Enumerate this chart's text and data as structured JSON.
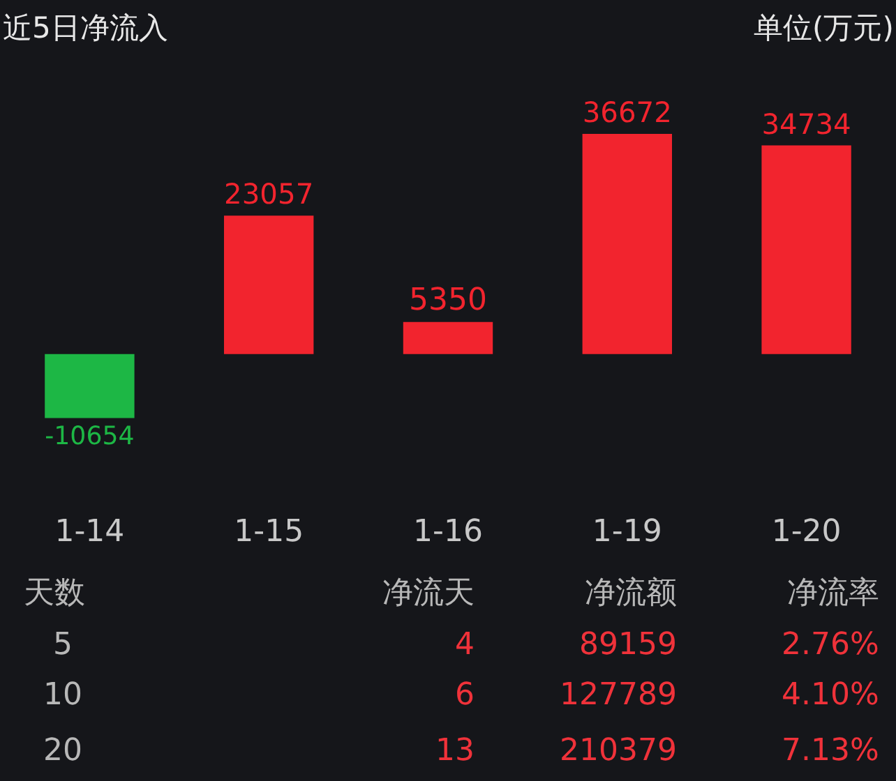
{
  "chart_data": {
    "type": "bar",
    "title": "近5日净流入",
    "subtitle": "单位(万元)",
    "categories": [
      "1-14",
      "1-15",
      "1-16",
      "1-19",
      "1-20"
    ],
    "values": [
      -10654,
      23057,
      5350,
      36672,
      34734
    ],
    "colors": [
      "#1db745",
      "#f2242e",
      "#f2242e",
      "#f2242e",
      "#f2242e"
    ],
    "data_labels": true,
    "tick_labels": "x",
    "annotations": [
      "天数",
      "净流天",
      "净流额",
      "净流率",
      "5",
      "4",
      "89159",
      "2.76%",
      "10",
      "6",
      "127789",
      "4.10%",
      "20",
      "13",
      "210379",
      "7.13%"
    ]
  }
}
